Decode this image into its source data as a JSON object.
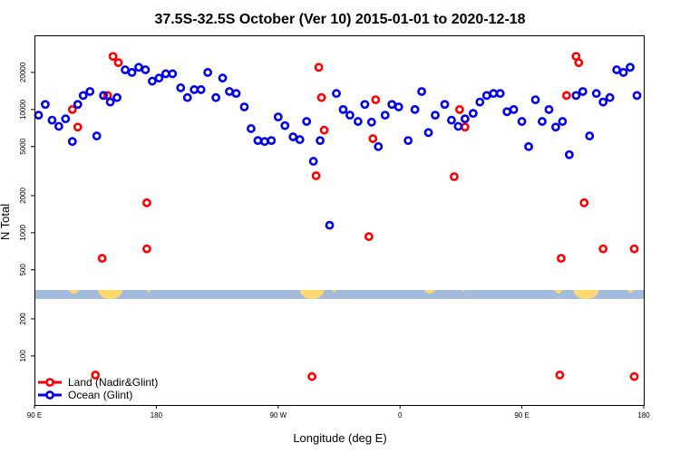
{
  "chart_data": {
    "type": "scatter",
    "title": "37.5S-32.5S October (Ver 10)   2015-01-01 to 2020-12-18",
    "xlabel": "Longitude (deg E)",
    "ylabel": "N Total",
    "y_scale": "log",
    "ylim": [
      40,
      40000
    ],
    "x_domain_deg": [
      90,
      540
    ],
    "xticks": [
      {
        "value": 90,
        "label": "90 E"
      },
      {
        "value": 180,
        "label": "180"
      },
      {
        "value": 270,
        "label": "90 W"
      },
      {
        "value": 360,
        "label": "0"
      },
      {
        "value": 450,
        "label": "90 E"
      },
      {
        "value": 540,
        "label": "180"
      }
    ],
    "yticks_upper": [
      500,
      1000,
      2000,
      5000,
      10000,
      20000
    ],
    "yticks_lower": [
      100,
      200
    ],
    "colors": {
      "land": "#ff0000",
      "ocean": "#0000ee",
      "map_ocean": "#a3bcdc",
      "map_land": "#ffd970"
    },
    "legend": [
      {
        "name": "Land (Nadir&Glint)",
        "color": "#ff0000"
      },
      {
        "name": "Ocean (Glint)",
        "color": "#0000ee"
      }
    ],
    "series": [
      {
        "name": "Land (Nadir&Glint)",
        "color": "#ff0000",
        "x": [
          118,
          122,
          135,
          140,
          144,
          148,
          152,
          173,
          173,
          295,
          298,
          300,
          302,
          304,
          337,
          340,
          342,
          400,
          404,
          408,
          478,
          479,
          483,
          490,
          492,
          496,
          510,
          533,
          533
        ],
        "y": [
          10000,
          7200,
          70,
          620,
          13000,
          27000,
          24000,
          1750,
          740,
          68,
          2900,
          22000,
          12500,
          6800,
          930,
          5800,
          12000,
          2850,
          10000,
          7200,
          70,
          620,
          13000,
          27000,
          24000,
          1750,
          740,
          68,
          740
        ]
      },
      {
        "name": "Ocean (Glint)",
        "color": "#0000ee",
        "x": [
          93,
          98,
          103,
          108,
          113,
          118,
          122,
          126,
          131,
          136,
          141,
          146,
          151,
          157,
          162,
          167,
          172,
          177,
          182,
          187,
          192,
          198,
          203,
          208,
          213,
          218,
          224,
          229,
          234,
          239,
          245,
          250,
          255,
          260,
          265,
          270,
          275,
          281,
          286,
          291,
          296,
          301,
          308,
          313,
          318,
          323,
          329,
          334,
          339,
          344,
          349,
          354,
          359,
          366,
          371,
          376,
          381,
          386,
          393,
          398,
          403,
          408,
          414,
          419,
          424,
          429,
          434,
          439,
          444,
          450,
          455,
          460,
          465,
          470,
          475,
          480,
          485,
          490,
          495,
          500,
          505,
          510,
          515,
          520,
          525,
          530,
          535
        ],
        "y": [
          9000,
          11000,
          8200,
          7300,
          8400,
          5500,
          11000,
          13000,
          14000,
          6100,
          13000,
          11500,
          12500,
          21000,
          20000,
          22000,
          21000,
          17000,
          18000,
          19500,
          19500,
          15000,
          12500,
          14500,
          14500,
          20000,
          12500,
          18000,
          14000,
          13500,
          10500,
          7000,
          5600,
          5500,
          5600,
          8700,
          7400,
          6000,
          5700,
          8000,
          3800,
          5600,
          1150,
          13500,
          10000,
          9000,
          8000,
          11000,
          7900,
          5000,
          9000,
          11000,
          10500,
          5600,
          10000,
          14000,
          6500,
          9000,
          11000,
          8200,
          7300,
          8400,
          9300,
          11500,
          13000,
          13500,
          13500,
          9600,
          10000,
          8000,
          5000,
          12000,
          8000,
          10000,
          7200,
          8000,
          4300,
          13000,
          14000,
          6100,
          13500,
          11500,
          12500,
          21000,
          20000,
          22000,
          13000
        ]
      }
    ]
  }
}
